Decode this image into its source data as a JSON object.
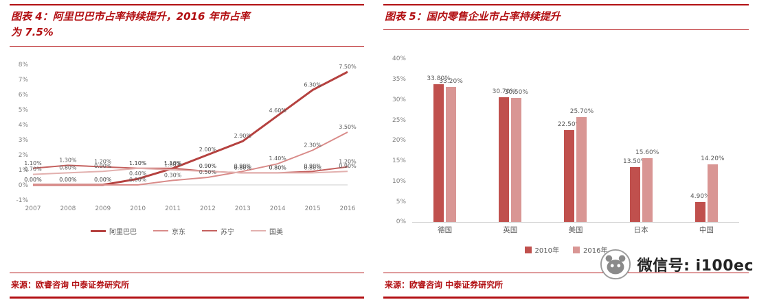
{
  "page": {
    "watermark": {
      "text": "微信号: i100ec"
    }
  },
  "colors": {
    "accent_red": "#b20f12",
    "tick_gray": "#808080",
    "label_gray": "#595959"
  },
  "left_panel": {
    "title": "图表 4：阿里巴巴市占率持续提升，2016 年市占率\n为 7.5%",
    "source": "来源：欧睿咨询  中泰证券研究所"
  },
  "right_panel": {
    "title": "图表 5：国内零售企业市占率持续提升",
    "source": "来源：欧睿咨询  中泰证券研究所"
  },
  "chart_data": [
    {
      "type": "line",
      "title": "阿里巴巴市占率持续提升，2016 年市占率为 7.5%",
      "x": [
        "2007",
        "2008",
        "2009",
        "2010",
        "2011",
        "2012",
        "2013",
        "2014",
        "2015",
        "2016"
      ],
      "xlabel": "",
      "ylabel": "",
      "ylim": [
        -1,
        8
      ],
      "ytick_step": 1,
      "ytick_suffix": "%",
      "grid": false,
      "legend_position": "bottom",
      "data_labels": true,
      "series": [
        {
          "name": "阿里巴巴",
          "color": "#b5413f",
          "width": 3,
          "values": [
            0.0,
            0.0,
            0.0,
            0.4,
            1.1,
            2.0,
            2.9,
            4.6,
            6.3,
            7.5
          ]
        },
        {
          "name": "京东",
          "color": "#d98b89",
          "width": 2,
          "values": [
            0.0,
            0.0,
            0.0,
            0.0,
            0.3,
            0.5,
            0.9,
            1.4,
            2.3,
            3.5
          ]
        },
        {
          "name": "苏宁",
          "color": "#c4605e",
          "width": 2,
          "values": [
            1.1,
            1.3,
            1.2,
            1.1,
            1.1,
            0.9,
            0.8,
            0.8,
            0.9,
            1.2
          ]
        },
        {
          "name": "国美",
          "color": "#e2b0ae",
          "width": 2,
          "values": [
            0.7,
            0.8,
            0.9,
            1.1,
            1.0,
            0.9,
            0.8,
            0.8,
            0.8,
            0.9
          ]
        }
      ]
    },
    {
      "type": "bar",
      "title": "国内零售企业市占率持续提升",
      "categories": [
        "德国",
        "英国",
        "美国",
        "日本",
        "中国"
      ],
      "xlabel": "",
      "ylabel": "",
      "ylim": [
        0,
        40
      ],
      "ytick_step": 5,
      "ytick_suffix": "%",
      "grid": false,
      "legend_position": "bottom",
      "data_labels": true,
      "series": [
        {
          "name": "2010年",
          "color": "#c0504d",
          "values": [
            33.8,
            30.7,
            22.5,
            13.5,
            4.9
          ]
        },
        {
          "name": "2016年",
          "color": "#d99694",
          "values": [
            33.2,
            30.5,
            25.7,
            15.6,
            14.2
          ]
        }
      ]
    }
  ]
}
